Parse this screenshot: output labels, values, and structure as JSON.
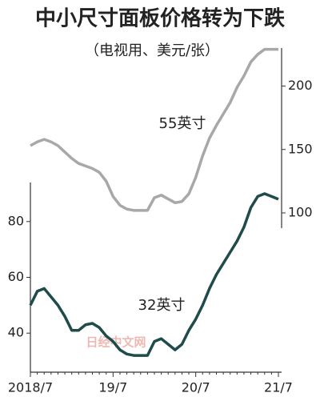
{
  "chart_data": {
    "type": "line",
    "title": "中小尺寸面板价格转为下跌",
    "subtitle": "（电视用、美元/张）",
    "watermark": "日经中文网",
    "categories": [
      "2018/7",
      null,
      null,
      null,
      null,
      null,
      null,
      null,
      null,
      null,
      null,
      null,
      "19/7",
      null,
      null,
      null,
      null,
      null,
      null,
      null,
      null,
      null,
      null,
      null,
      "20/7",
      null,
      null,
      null,
      null,
      null,
      null,
      null,
      null,
      null,
      null,
      null,
      "21/7"
    ],
    "series": [
      {
        "name": "55英寸",
        "color": "#a8a8a8",
        "axis": "y2",
        "values": [
          153,
          156,
          158,
          156,
          153,
          148,
          143,
          139,
          137,
          135,
          132,
          125,
          113,
          106,
          103,
          102,
          102,
          102,
          112,
          114,
          111,
          108,
          109,
          115,
          128,
          145,
          159,
          169,
          178,
          187,
          199,
          208,
          219,
          225,
          229,
          229,
          229
        ]
      },
      {
        "name": "32英寸",
        "color": "#1f4b4a",
        "values": [
          50,
          55,
          56,
          53,
          50,
          46,
          41,
          41,
          43,
          43.5,
          42,
          39,
          37,
          34,
          32.5,
          32,
          32,
          32,
          37,
          38,
          36,
          34,
          36,
          41,
          45,
          50,
          56,
          61,
          65,
          69,
          73,
          78,
          85,
          89,
          90,
          89,
          88
        ]
      }
    ],
    "ylim": [
      26,
      94
    ],
    "yticks": [
      40,
      60,
      80
    ],
    "y2lim": [
      88,
      230
    ],
    "y2ticks": [
      100,
      150,
      200
    ]
  }
}
